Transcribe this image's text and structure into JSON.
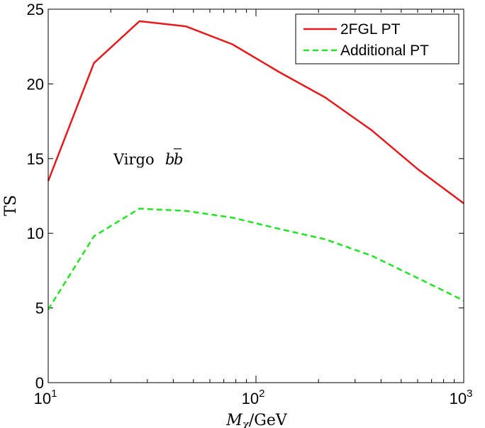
{
  "chart_data": {
    "type": "line",
    "xscale": "log",
    "xlim": [
      10,
      1000
    ],
    "ylim": [
      0,
      25
    ],
    "x": [
      10,
      16.6,
      27.5,
      46,
      77,
      129,
      215,
      360,
      600,
      1000
    ],
    "series": [
      {
        "name": "2FGL PT",
        "color": "#e41a1c",
        "dash": "solid",
        "values": [
          13.5,
          21.4,
          24.2,
          23.85,
          22.65,
          20.8,
          19.1,
          16.9,
          14.3,
          12.0
        ]
      },
      {
        "name": "Additional PT",
        "color": "#22e322",
        "dash": "dashed",
        "values": [
          4.9,
          9.8,
          11.65,
          11.5,
          11.05,
          10.3,
          9.6,
          8.5,
          7.0,
          5.5
        ]
      }
    ],
    "xlabel": "M_χ/GeV",
    "xlabel_main": "M",
    "xlabel_sub": "χ",
    "xlabel_unit": "/GeV",
    "ylabel": "TS",
    "yticks": [
      "0",
      "5",
      "10",
      "15",
      "20",
      "25"
    ],
    "xticks": [
      {
        "base": "10",
        "exp": "1"
      },
      {
        "base": "10",
        "exp": "2"
      },
      {
        "base": "10",
        "exp": "3"
      }
    ],
    "annotation": "Virgo b̅b",
    "annotation_word": "Virgo",
    "annotation_b1": "b",
    "annotation_b2": "b",
    "legend_position": "top-right",
    "grid": false
  }
}
